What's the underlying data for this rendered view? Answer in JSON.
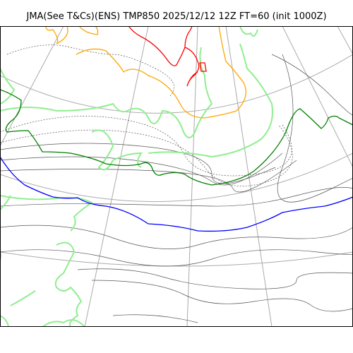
{
  "title": "JMA(See T&Cs)(ENS) TMP850 2025/12/12 12Z FT=60 (init 1000Z)",
  "colors": {
    "background": "#ffffff",
    "frame": "#000000",
    "graticule": "#aaaaaa",
    "temperature_contour": "#555555",
    "coastline": "#90ee90",
    "isotherm_0C": "#008000",
    "isotherm_minus_6C": "#0000ff",
    "isotherm_orange": "#ffa500",
    "isotherm_red": "#ff0000"
  },
  "layers": [
    "graticule",
    "temperature-contours",
    "coastline",
    "isotherm-orange",
    "isotherm-red",
    "isotherm-green",
    "isotherm-blue"
  ]
}
